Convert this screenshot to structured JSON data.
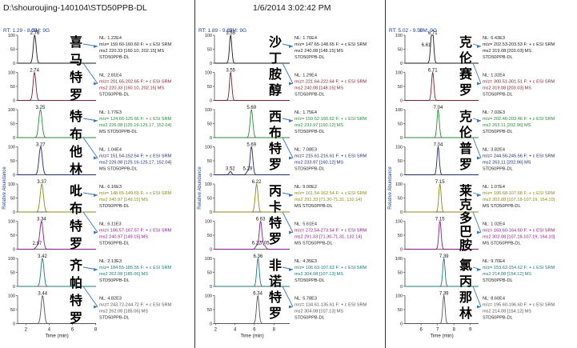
{
  "header": {
    "file": "D:\\shouroujing-140104\\STD50PPB-DL",
    "datetime": "1/6/2014 3:02:42 PM"
  },
  "axis_common": {
    "ylabel": "Relative Abundance",
    "xlabel": "Time (min)",
    "yticks": [
      "0",
      "50",
      "100"
    ]
  },
  "chart_data": [
    {
      "type": "line",
      "panel": "left",
      "rt_label": "RT: 1.29 - 8.03",
      "sm_label": "SM: 9G",
      "xlim": [
        1.29,
        8.03
      ],
      "xticks": [
        2,
        4,
        6,
        8
      ],
      "xlabel": "Time (min)",
      "ylabel": "Relative Abundance",
      "traces": [
        {
          "color": "#1a1a1a",
          "peak_rt": 2.76,
          "peak_label": "2.76",
          "width": 0.12,
          "nl": "NL: 1.22E4",
          "line1": "m/z= 159.60-160.60 F: + c ESI SRM",
          "line2": "ms2 220.33 [160.10, 202.15]  MS",
          "line3": "STD50PPB-DL",
          "compound": "喜马特罗"
        },
        {
          "color": "#7a1f2b",
          "peak_rt": 2.74,
          "peak_label": "2.74",
          "width": 0.12,
          "nl": "NL: 2.81E4",
          "line1": "m/z= 201.65-202.65 F: + c ESI SRM",
          "line2": "ms2 220.33 [160.10, 202.15]  MS",
          "line3": "STD50PPB-DL",
          "compound": ""
        },
        {
          "color": "#2a8a3a",
          "peak_rt": 3.25,
          "peak_label": "3.25",
          "width": 0.14,
          "nl": "NL: 1.77E3",
          "line1": "m/z= 124.66-125.66 F: + c ESI SRM",
          "line2": "ms2 226.08 [125.16-125.17, 152.04]",
          "line3": "MS STD50PPB-DL",
          "compound": "特布他林"
        },
        {
          "color": "#1f2a6b",
          "peak_rt": 3.27,
          "peak_label": "3.27",
          "width": 0.14,
          "nl": "NL: 1.04E4",
          "line1": "m/z= 151.54-152.54 F: + c ESI SRM",
          "line2": "ms2 226.08 [125.16-125.17, 152.04]",
          "line3": "MS STD50PPB-DL",
          "compound": ""
        },
        {
          "color": "#8a8a1a",
          "peak_rt": 3.37,
          "peak_label": "3.37",
          "width": 0.14,
          "nl": "NL: 6.16E3",
          "line1": "m/z= 148.65-149.65 F: + c ESI SRM",
          "line2": "ms2 240.97 [149.15]  MS",
          "line3": "STD50PPB-DL",
          "compound": "吡布特罗"
        },
        {
          "color": "#8a1a8a",
          "peak_rt": 3.34,
          "peak_label": "3.34",
          "width": 0.14,
          "nl": "NL: 6.11E3",
          "line1": "m/z= 166.57-167.57 F: + c ESI SRM",
          "line2": "ms2 240.97 [149.15]  MS",
          "line3": "STD50PPB-DL",
          "compound": "",
          "minor_rt": 2.97,
          "minor_label": "2.97",
          "minor_height": 0.1
        },
        {
          "color": "#1a7a7a",
          "peak_rt": 3.42,
          "peak_label": "3.42",
          "width": 0.13,
          "nl": "NL: 2.13E3",
          "line1": "m/z= 184.55-185.55 F: + c ESI SRM",
          "line2": "ms2 262.08 [185.06]  MS",
          "line3": "STD50PPB-DL",
          "compound": "齐帕特罗"
        },
        {
          "color": "#555555",
          "peak_rt": 3.44,
          "peak_label": "3.44",
          "width": 0.13,
          "nl": "NL: 4.82E3",
          "line1": "m/z= 243.72-244.72 F: + c ESI SRM",
          "line2": "ms2 262.08 [185.06]  MS",
          "line3": "STD50PPB-DL",
          "compound": ""
        }
      ]
    },
    {
      "type": "line",
      "panel": "middle",
      "rt_label": "RT: 1.89 - 9.62",
      "sm_label": "SM: 9G",
      "xlim": [
        1.89,
        9.62
      ],
      "xticks": [
        2,
        4,
        6,
        8
      ],
      "xlabel": "Time (min)",
      "ylabel": "Relative Abundance",
      "traces": [
        {
          "color": "#1a1a1a",
          "peak_rt": 3.55,
          "peak_label": "3.55",
          "width": 0.12,
          "nl": "NL: 1.76E4",
          "line1": "m/z= 147.65-148.65 F: + c ESI SRM",
          "line2": "ms2 240.08 [148.15]  MS",
          "line3": "STD50PPB-DL",
          "compound": "沙丁胺醇"
        },
        {
          "color": "#7a1f2b",
          "peak_rt": 3.55,
          "peak_label": "3.55",
          "width": 0.12,
          "nl": "NL: 1.29E4",
          "line1": "m/z= 221.64-222.64 F: + c ESI SRM",
          "line2": "ms2 240.08 [148.15]  MS",
          "line3": "STD50PPB-DL",
          "compound": ""
        },
        {
          "color": "#2a8a3a",
          "peak_rt": 5.69,
          "peak_label": "5.69",
          "width": 0.14,
          "nl": "NL: 1.75E4",
          "line1": "m/z= 159.62-160.62 F: + c ESI SRM",
          "line2": "ms2 233.97 [160.12]  MS",
          "line3": "STD50PPB-DL",
          "compound": "西布特罗"
        },
        {
          "color": "#1f2a6b",
          "peak_rt": 5.69,
          "peak_label": "5.69",
          "width": 0.14,
          "nl": "NL: 7.08E3",
          "line1": "m/z= 215.61-216.61 F: + c ESI SRM",
          "line2": "ms2 233.97 [160.12]  MS",
          "line3": "STD50PPB-DL",
          "compound": "",
          "minor_rt": 3.52,
          "minor_label": "3.52",
          "minor_height": 0.12,
          "minor2_rt": 5.29,
          "minor2_label": "5.29",
          "minor2_height": 0.12
        },
        {
          "color": "#8a8a1a",
          "peak_rt": 6.22,
          "peak_label": "6.22",
          "width": 0.14,
          "nl": "NL: 9.00E2",
          "line1": "m/z= 161.54-162.54 F: + c ESI SRM",
          "line2": "ms2 291.33 [71.30-71.31, 132.14]",
          "line3": "MS STD50PPB-DL",
          "compound": "丙卡特罗"
        },
        {
          "color": "#8a1a8a",
          "peak_rt": 6.63,
          "peak_label": "6.63",
          "width": 0.14,
          "nl": "NL: 5.61E4",
          "line1": "m/z= 272.54-273.54 F: + c ESI SRM",
          "line2": "ms2 291.33 [71.30-71.31, 132.14]",
          "line3": "MS STD50PPB-DL",
          "compound": "",
          "minor_rt": 6.22,
          "minor_label": "6.22",
          "minor_height": 0.12,
          "minor2_rt": 7.05,
          "minor2_label": "7.05",
          "minor2_height": 0.12
        },
        {
          "color": "#1a7a7a",
          "peak_rt": 6.36,
          "peak_label": "6.36",
          "width": 0.13,
          "nl": "NL: 4.35E3",
          "line1": "m/z= 106.63-107.63 F: + c ESI SRM",
          "line2": "ms2 304.08 [107.13]  MS",
          "line3": "STD50PPB-DL",
          "compound": "非诺特罗"
        },
        {
          "color": "#555555",
          "peak_rt": 6.34,
          "peak_label": "6.34",
          "width": 0.13,
          "nl": "NL: 5.78E3",
          "line1": "m/z= 134.61-135.61 F: + c ESI SRM",
          "line2": "ms2 304.08 [107.13]  MS",
          "line3": "STD50PPB-DL",
          "compound": ""
        }
      ]
    },
    {
      "type": "line",
      "panel": "right",
      "rt_label": "RT: 5.02 - 9.50",
      "sm_label": "SM: 9G",
      "xlim": [
        5.02,
        9.5
      ],
      "xticks": [
        6,
        7,
        8,
        9
      ],
      "xlabel": "Time (min)",
      "ylabel": "Relative Abundance",
      "traces": [
        {
          "color": "#1a1a1a",
          "peak_rt": 6.71,
          "peak_label": "6.71",
          "width": 0.07,
          "nl": "NL: 6.43E3",
          "line1": "m/z= 202.53-203.53 F: + c ESI SRM",
          "line2": "ms2 319.08 [203.03]  MS",
          "line3": "STD50PPB-DL",
          "compound": "克伦赛罗",
          "minor_rt": 6.61,
          "minor_label": "6.61",
          "minor_height": 0.55
        },
        {
          "color": "#7a1f2b",
          "peak_rt": 6.71,
          "peak_label": "6.71",
          "width": 0.07,
          "nl": "NL: 1.32E4",
          "line1": "m/z= 300.51-301.51 F: + c ESI SRM",
          "line2": "ms2 319.08 [203.03]  MS",
          "line3": "STD50PPB-DL",
          "compound": ""
        },
        {
          "color": "#2a8a3a",
          "peak_rt": 7.04,
          "peak_label": "7.04",
          "width": 0.07,
          "nl": "NL: 7.02E3",
          "line1": "m/z= 202.46-203.46 F: + c ESI SRM",
          "line2": "ms2 263.11 [202.96]  MS",
          "line3": "STD50PPB-DL",
          "compound": "克伦普罗"
        },
        {
          "color": "#1f2a6b",
          "peak_rt": 7.04,
          "peak_label": "7.04",
          "width": 0.07,
          "nl": "NL: 3.82E4",
          "line1": "m/z= 244.56-245.56 F: + c ESI SRM",
          "line2": "ms2 263.11 [202.96]  MS",
          "line3": "STD50PPB-DL",
          "compound": ""
        },
        {
          "color": "#8a8a1a",
          "peak_rt": 7.15,
          "peak_label": "7.15",
          "width": 0.07,
          "nl": "NL: 1.07E4",
          "line1": "m/z= 106.68-107.68 F: + c ESI SRM",
          "line2": "ms2 302.08 [107.18-107.19, 164.10]",
          "line3": "MS STD50PPB-DL",
          "compound": "莱克多巴胺"
        },
        {
          "color": "#8a1a8a",
          "peak_rt": 7.15,
          "peak_label": "7.15",
          "width": 0.07,
          "nl": "NL: 1.02E4",
          "line1": "m/z= 163.60-164.60 F: + c ESI SRM",
          "line2": "ms2 302.08 [107.18-107.19, 164.10]",
          "line3": "MS STD50PPB-DL",
          "compound": ""
        },
        {
          "color": "#1a7a7a",
          "peak_rt": 7.39,
          "peak_label": "7.39",
          "width": 0.07,
          "nl": "NL: 9.70E4",
          "line1": "m/z= 153.62-154.62 F: + c ESI SRM",
          "line2": "ms2 214.08 [154.12]  MS",
          "line3": "STD50PPB-DL",
          "compound": "氯丙那林"
        },
        {
          "color": "#555555",
          "peak_rt": 7.39,
          "peak_label": "7.39",
          "width": 0.07,
          "nl": "NL: 8.60E4",
          "line1": "m/z= 195.60-196.60 F: + c ESI SRM",
          "line2": "ms2 214.08 [154.12]  MS",
          "line3": "STD50PPB-DL",
          "compound": ""
        }
      ]
    }
  ]
}
